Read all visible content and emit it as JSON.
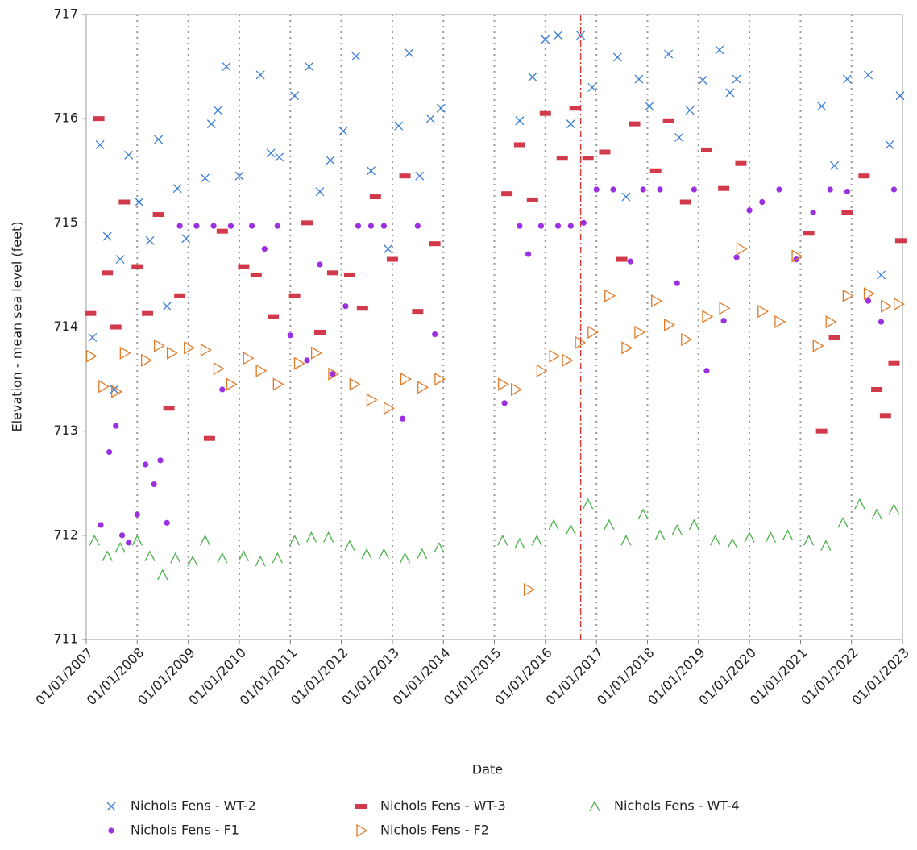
{
  "chart_data": {
    "type": "scatter",
    "x_label": "Date",
    "y_label": "Elevation - mean sea level (feet)",
    "xlim": [
      "2007-01-01",
      "2023-01-01"
    ],
    "xticks": [
      {
        "value": "2007-01-01",
        "label": "01/01/2007"
      },
      {
        "value": "2008-01-01",
        "label": "01/01/2008"
      },
      {
        "value": "2009-01-01",
        "label": "01/01/2009"
      },
      {
        "value": "2010-01-01",
        "label": "01/01/2010"
      },
      {
        "value": "2011-01-01",
        "label": "01/01/2011"
      },
      {
        "value": "2012-01-01",
        "label": "01/01/2012"
      },
      {
        "value": "2013-01-01",
        "label": "01/01/2013"
      },
      {
        "value": "2014-01-01",
        "label": "01/01/2014"
      },
      {
        "value": "2015-01-01",
        "label": "01/01/2015"
      },
      {
        "value": "2016-01-01",
        "label": "01/01/2016"
      },
      {
        "value": "2017-01-01",
        "label": "01/01/2017"
      },
      {
        "value": "2018-01-01",
        "label": "01/01/2018"
      },
      {
        "value": "2019-01-01",
        "label": "01/01/2019"
      },
      {
        "value": "2020-01-01",
        "label": "01/01/2020"
      },
      {
        "value": "2021-01-01",
        "label": "01/01/2021"
      },
      {
        "value": "2022-01-01",
        "label": "01/01/2022"
      },
      {
        "value": "2023-01-01",
        "label": "01/01/2023"
      }
    ],
    "ylim": [
      711,
      717
    ],
    "yticks": [
      711,
      712,
      713,
      714,
      715,
      716,
      717
    ],
    "x_grid": true,
    "reference_line": {
      "x": "2016-09-10",
      "color": "#e0302e"
    },
    "series": [
      {
        "name": "Nichols Fens - WT-2",
        "marker": "x",
        "color": "#3a7dd6",
        "x": [
          "2007-02-15",
          "2007-04-10",
          "2007-06-01",
          "2007-07-20",
          "2007-09-01",
          "2007-11-01",
          "2008-01-15",
          "2008-04-01",
          "2008-06-01",
          "2008-08-01",
          "2008-10-15",
          "2008-12-15",
          "2009-05-01",
          "2009-06-15",
          "2009-08-01",
          "2009-10-01",
          "2010-01-01",
          "2010-06-01",
          "2010-08-15",
          "2010-10-15",
          "2011-02-01",
          "2011-05-15",
          "2011-08-01",
          "2011-10-15",
          "2012-01-15",
          "2012-04-15",
          "2012-08-01",
          "2012-12-01",
          "2013-02-15",
          "2013-05-01",
          "2013-07-15",
          "2013-10-01",
          "2013-12-15",
          "2015-07-01",
          "2015-10-01",
          "2016-01-01",
          "2016-04-01",
          "2016-07-01",
          "2016-09-10",
          "2016-12-01",
          "2017-06-01",
          "2017-08-01",
          "2017-11-01",
          "2018-01-15",
          "2018-06-01",
          "2018-08-15",
          "2018-11-01",
          "2019-02-01",
          "2019-06-01",
          "2019-08-15",
          "2019-10-01",
          "2021-06-01",
          "2021-09-01",
          "2021-12-01",
          "2022-05-01",
          "2022-08-01",
          "2022-10-01",
          "2022-12-15"
        ],
        "values": [
          713.9,
          715.75,
          714.87,
          713.4,
          714.65,
          715.65,
          715.2,
          714.83,
          715.8,
          714.2,
          715.33,
          714.85,
          715.43,
          715.95,
          716.08,
          716.5,
          715.45,
          716.42,
          715.67,
          715.63,
          716.22,
          716.5,
          715.3,
          715.6,
          715.88,
          716.6,
          715.5,
          714.75,
          715.93,
          716.63,
          715.45,
          716.0,
          716.1,
          715.98,
          716.4,
          716.76,
          716.8,
          715.95,
          716.8,
          716.3,
          716.59,
          715.25,
          716.38,
          716.12,
          716.62,
          715.82,
          716.08,
          716.37,
          716.66,
          716.25,
          716.38,
          716.12,
          715.55,
          716.38,
          716.42,
          714.5,
          715.75,
          716.22
        ]
      },
      {
        "name": "Nichols Fens - WT-3",
        "marker": "dash",
        "color": "#d23a4c",
        "x": [
          "2007-02-01",
          "2007-04-01",
          "2007-06-01",
          "2007-08-01",
          "2007-10-01",
          "2008-01-01",
          "2008-03-15",
          "2008-06-01",
          "2008-08-15",
          "2008-11-01",
          "2009-06-01",
          "2009-09-01",
          "2010-02-01",
          "2010-05-01",
          "2010-09-01",
          "2011-02-01",
          "2011-05-01",
          "2011-08-01",
          "2011-11-01",
          "2012-03-01",
          "2012-06-01",
          "2012-09-01",
          "2013-01-01",
          "2013-04-01",
          "2013-07-01",
          "2013-11-01",
          "2015-04-01",
          "2015-07-01",
          "2015-10-01",
          "2016-01-01",
          "2016-05-01",
          "2016-08-01",
          "2016-11-01",
          "2017-03-01",
          "2017-07-01",
          "2017-10-01",
          "2018-03-01",
          "2018-06-01",
          "2018-10-01",
          "2019-03-01",
          "2019-07-01",
          "2019-11-01",
          "2021-03-01",
          "2021-06-01",
          "2021-09-01",
          "2021-12-01",
          "2022-04-01",
          "2022-07-01",
          "2022-09-01",
          "2022-11-01",
          "2022-12-20"
        ],
        "values": [
          714.13,
          716.0,
          714.52,
          714.0,
          715.2,
          714.58,
          714.13,
          715.08,
          713.22,
          714.3,
          712.93,
          714.92,
          714.58,
          714.5,
          714.1,
          714.3,
          715.0,
          713.95,
          714.52,
          714.5,
          714.18,
          715.25,
          714.65,
          715.45,
          714.15,
          714.8,
          715.28,
          715.75,
          715.22,
          716.05,
          715.62,
          716.1,
          715.62,
          715.68,
          714.65,
          715.95,
          715.5,
          715.98,
          715.2,
          715.7,
          715.33,
          715.57,
          714.9,
          713.0,
          713.9,
          715.1,
          715.45,
          713.4,
          713.15,
          713.65,
          714.83
        ]
      },
      {
        "name": "Nichols Fens - WT-4",
        "marker": "caret",
        "color": "#4cb34c",
        "x": [
          "2007-03-01",
          "2007-06-01",
          "2007-09-01",
          "2008-01-01",
          "2008-04-01",
          "2008-07-01",
          "2008-10-01",
          "2009-02-01",
          "2009-05-01",
          "2009-09-01",
          "2010-02-01",
          "2010-06-01",
          "2010-10-01",
          "2011-02-01",
          "2011-06-01",
          "2011-10-01",
          "2012-03-01",
          "2012-07-01",
          "2012-11-01",
          "2013-04-01",
          "2013-08-01",
          "2013-12-01",
          "2015-03-01",
          "2015-07-01",
          "2015-11-01",
          "2016-03-01",
          "2016-07-01",
          "2016-11-01",
          "2017-04-01",
          "2017-08-01",
          "2017-12-01",
          "2018-04-01",
          "2018-08-01",
          "2018-12-01",
          "2019-05-01",
          "2019-09-01",
          "2020-01-01",
          "2020-06-01",
          "2020-10-01",
          "2021-03-01",
          "2021-07-01",
          "2021-11-01",
          "2022-03-01",
          "2022-07-01",
          "2022-11-01"
        ],
        "values": [
          711.95,
          711.8,
          711.88,
          711.95,
          711.8,
          711.62,
          711.78,
          711.75,
          711.95,
          711.78,
          711.8,
          711.75,
          711.78,
          711.95,
          711.98,
          711.98,
          711.9,
          711.82,
          711.82,
          711.78,
          711.82,
          711.88,
          711.95,
          711.92,
          711.95,
          712.1,
          712.05,
          712.3,
          712.1,
          711.95,
          712.2,
          712.0,
          712.05,
          712.1,
          711.95,
          711.92,
          711.98,
          711.98,
          712.0,
          711.95,
          711.9,
          712.12,
          712.3,
          712.2,
          712.25
        ]
      },
      {
        "name": "Nichols Fens - F1",
        "marker": "dot",
        "color": "#9b30e0",
        "x": [
          "2007-04-15",
          "2007-06-15",
          "2007-08-01",
          "2007-09-15",
          "2007-11-01",
          "2008-01-01",
          "2008-03-01",
          "2008-05-01",
          "2008-06-15",
          "2008-08-01",
          "2008-11-01",
          "2009-03-01",
          "2009-07-01",
          "2009-09-01",
          "2009-11-01",
          "2010-04-01",
          "2010-07-01",
          "2010-10-01",
          "2011-01-01",
          "2011-05-01",
          "2011-08-01",
          "2011-11-01",
          "2012-02-01",
          "2012-05-01",
          "2012-08-01",
          "2012-11-01",
          "2013-03-15",
          "2013-07-01",
          "2013-11-01",
          "2015-03-15",
          "2015-07-01",
          "2015-09-01",
          "2015-12-01",
          "2016-04-01",
          "2016-07-01",
          "2016-10-01",
          "2017-01-01",
          "2017-05-01",
          "2017-09-01",
          "2017-12-01",
          "2018-04-01",
          "2018-08-01",
          "2018-12-01",
          "2019-03-01",
          "2019-07-01",
          "2019-10-01",
          "2020-01-01",
          "2020-04-01",
          "2020-08-01",
          "2020-12-01",
          "2021-04-01",
          "2021-08-01",
          "2021-12-01",
          "2022-05-01",
          "2022-08-01",
          "2022-11-01"
        ],
        "values": [
          712.1,
          712.8,
          713.05,
          712.0,
          711.93,
          712.2,
          712.68,
          712.49,
          712.72,
          712.12,
          714.97,
          714.97,
          714.97,
          713.4,
          714.97,
          714.97,
          714.75,
          714.97,
          713.92,
          713.68,
          714.6,
          713.55,
          714.2,
          714.97,
          714.97,
          714.97,
          713.12,
          714.97,
          713.93,
          713.27,
          714.97,
          714.7,
          714.97,
          714.97,
          714.97,
          715.0,
          715.32,
          715.32,
          714.63,
          715.32,
          715.32,
          714.42,
          715.32,
          713.58,
          714.06,
          714.67,
          715.12,
          715.2,
          715.32,
          714.65,
          715.1,
          715.32,
          715.3,
          714.25,
          714.05,
          715.32
        ]
      },
      {
        "name": "Nichols Fens - F2",
        "marker": "triangle-right",
        "color": "#e07a28",
        "x": [
          "2007-02-01",
          "2007-05-01",
          "2007-08-01",
          "2007-10-01",
          "2008-03-01",
          "2008-06-01",
          "2008-09-01",
          "2009-01-01",
          "2009-05-01",
          "2009-08-01",
          "2009-11-01",
          "2010-03-01",
          "2010-06-01",
          "2010-10-01",
          "2011-03-01",
          "2011-07-01",
          "2011-11-01",
          "2012-04-01",
          "2012-08-01",
          "2012-12-01",
          "2013-04-01",
          "2013-08-01",
          "2013-12-01",
          "2015-03-01",
          "2015-06-01",
          "2015-09-01",
          "2015-12-01",
          "2016-03-01",
          "2016-06-01",
          "2016-09-01",
          "2016-12-01",
          "2017-04-01",
          "2017-08-01",
          "2017-11-01",
          "2018-03-01",
          "2018-06-01",
          "2018-10-01",
          "2019-03-01",
          "2019-07-01",
          "2019-11-01",
          "2020-04-01",
          "2020-08-01",
          "2020-12-01",
          "2021-05-01",
          "2021-08-01",
          "2021-12-01",
          "2022-05-01",
          "2022-09-01",
          "2022-12-01"
        ],
        "values": [
          713.72,
          713.43,
          713.38,
          713.75,
          713.68,
          713.82,
          713.75,
          713.8,
          713.78,
          713.6,
          713.45,
          713.7,
          713.58,
          713.45,
          713.65,
          713.75,
          713.55,
          713.45,
          713.3,
          713.22,
          713.5,
          713.42,
          713.5,
          713.45,
          713.4,
          711.48,
          713.58,
          713.72,
          713.68,
          713.85,
          713.95,
          714.3,
          713.8,
          713.95,
          714.25,
          714.02,
          713.88,
          714.1,
          714.18,
          714.75,
          714.15,
          714.05,
          714.68,
          713.82,
          714.05,
          714.3,
          714.32,
          714.2,
          714.22
        ]
      }
    ]
  }
}
